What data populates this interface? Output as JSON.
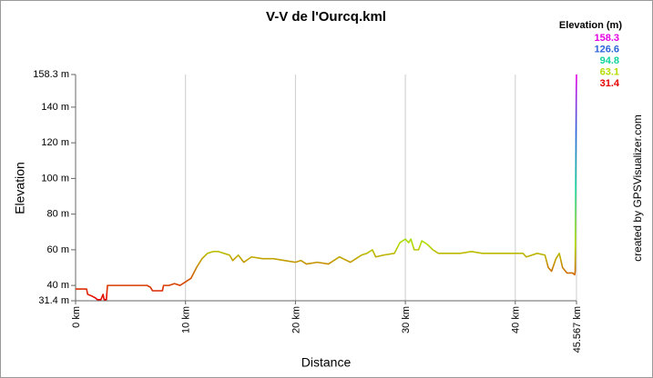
{
  "chart_data": {
    "type": "line",
    "title": "V-V de l'Ourcq.kml",
    "xlabel": "Distance",
    "ylabel": "Elevation",
    "credit": "created by GPSVisualizer.com",
    "legend_title": "Elevation (m)",
    "color_scale": [
      {
        "value": 158.3,
        "color": "#e600e6"
      },
      {
        "value": 126.6,
        "color": "#2c64dc"
      },
      {
        "value": 94.8,
        "color": "#12d49c"
      },
      {
        "value": 63.1,
        "color": "#b4dc00"
      },
      {
        "value": 31.4,
        "color": "#e60000"
      }
    ],
    "grid": "x",
    "xlim": [
      0,
      45.567
    ],
    "ylim": [
      31.4,
      158.3
    ],
    "xticks": [
      {
        "value": 0,
        "label": "0 km"
      },
      {
        "value": 10,
        "label": "10 km"
      },
      {
        "value": 20,
        "label": "20 km"
      },
      {
        "value": 30,
        "label": "30 km"
      },
      {
        "value": 40,
        "label": "40 km"
      },
      {
        "value": 45.567,
        "label": "45.567 km"
      }
    ],
    "yticks": [
      {
        "value": 31.4,
        "label": "31.4 m"
      },
      {
        "value": 40,
        "label": "40 m"
      },
      {
        "value": 60,
        "label": "60 m"
      },
      {
        "value": 80,
        "label": "80 m"
      },
      {
        "value": 100,
        "label": "100 m"
      },
      {
        "value": 120,
        "label": "120 m"
      },
      {
        "value": 140,
        "label": "140 m"
      },
      {
        "value": 158.3,
        "label": "158.3 m"
      }
    ],
    "x": [
      0,
      1.0,
      1.1,
      1.5,
      1.8,
      2.0,
      2.3,
      2.5,
      2.6,
      2.8,
      2.9,
      4,
      5,
      6.5,
      6.8,
      7.0,
      7.9,
      8.0,
      8.5,
      9,
      9.5,
      10,
      10.5,
      11,
      11.5,
      12,
      12.5,
      13,
      13.5,
      14,
      14.3,
      14.8,
      15.3,
      16,
      17,
      18,
      19,
      20,
      20.5,
      21,
      22,
      23,
      24,
      25,
      26,
      26.5,
      27,
      27.3,
      28,
      29,
      29.5,
      30,
      30.3,
      30.5,
      30.8,
      31.2,
      31.5,
      32,
      32.5,
      33,
      34,
      35,
      36,
      37,
      38,
      39,
      40,
      40.7,
      41,
      42,
      42.7,
      43,
      43.3,
      43.7,
      44,
      44.3,
      44.7,
      45.2,
      45.4,
      45.45,
      45.5,
      45.55,
      45.567
    ],
    "values": [
      38,
      38,
      35,
      34,
      33,
      32,
      32,
      35,
      32,
      32,
      40,
      40,
      40,
      40,
      39,
      37,
      37,
      40,
      40,
      41,
      40,
      42,
      44,
      50,
      55,
      58,
      59,
      59,
      58,
      57,
      54,
      57,
      53,
      56,
      55,
      55,
      54,
      53,
      54,
      52,
      53,
      52,
      56,
      53,
      57,
      58,
      60,
      56,
      57,
      58,
      64,
      66,
      64,
      66,
      60,
      60,
      65,
      63,
      60,
      58,
      58,
      58,
      59,
      58,
      58,
      58,
      58,
      58,
      56,
      58,
      57,
      50,
      48,
      55,
      58,
      50,
      47,
      47,
      46,
      48,
      100,
      150,
      158.3
    ]
  }
}
